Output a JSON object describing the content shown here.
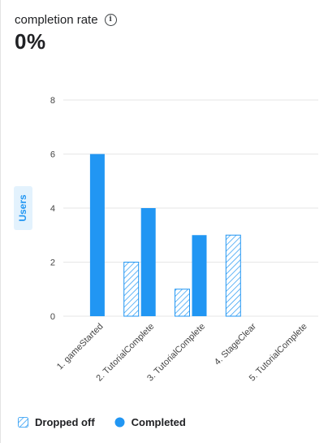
{
  "header": {
    "title": "completion rate",
    "value": "0%"
  },
  "colors": {
    "completed": "#2196f3",
    "dropped_stroke": "#2196f3",
    "grid": "#e6e6e6",
    "axis_text": "#444444",
    "ylabel_bg": "#e3f2fd"
  },
  "chart_data": {
    "type": "bar",
    "ylabel": "Users",
    "ylim": [
      0,
      8
    ],
    "yticks": [
      0,
      2,
      4,
      6,
      8
    ],
    "categories": [
      "1. gameStarted",
      "2. TutorialComplete",
      "3. TutorialComplete",
      "4. StageClear",
      "5. TutorialComplete"
    ],
    "series": [
      {
        "name": "Dropped off",
        "style": "hatched",
        "values": [
          0,
          2,
          1,
          3,
          0
        ]
      },
      {
        "name": "Completed",
        "style": "solid",
        "values": [
          6,
          4,
          3,
          0,
          0
        ]
      }
    ],
    "grid": true,
    "legend_position": "bottom-left"
  },
  "legend": {
    "dropped": "Dropped off",
    "completed": "Completed"
  }
}
